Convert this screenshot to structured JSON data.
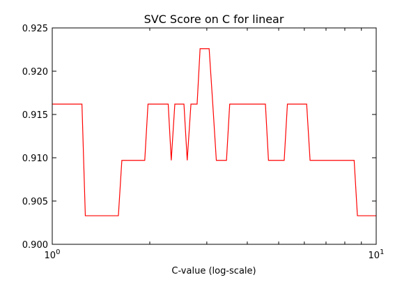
{
  "chart_data": {
    "type": "line",
    "title": "SVC Score on C for linear",
    "xlabel": "C-value (log-scale)",
    "ylabel": "",
    "xscale": "log",
    "xlim": [
      1,
      10
    ],
    "ylim": [
      0.9,
      0.925
    ],
    "grid": false,
    "legend": "none",
    "x_ticks": [
      {
        "value": 1,
        "base": "10",
        "exp": "0"
      },
      {
        "value": 10,
        "base": "10",
        "exp": "1"
      }
    ],
    "y_ticks": [
      {
        "value": 0.9,
        "label": "0.900"
      },
      {
        "value": 0.905,
        "label": "0.905"
      },
      {
        "value": 0.91,
        "label": "0.910"
      },
      {
        "value": 0.915,
        "label": "0.915"
      },
      {
        "value": 0.92,
        "label": "0.920"
      },
      {
        "value": 0.925,
        "label": "0.925"
      }
    ],
    "series": [
      {
        "color": "#ff0000",
        "x": [
          1.0,
          1.235,
          1.265,
          1.6,
          1.64,
          1.93,
          1.975,
          2.28,
          2.33,
          2.39,
          2.55,
          2.61,
          2.68,
          2.8,
          2.86,
          3.05,
          3.13,
          3.21,
          3.45,
          3.53,
          4.55,
          4.65,
          5.2,
          5.32,
          6.1,
          6.25,
          8.55,
          8.75,
          10.0
        ],
        "y": [
          0.9162,
          0.9162,
          0.9033,
          0.9033,
          0.9097,
          0.9097,
          0.9162,
          0.9162,
          0.9097,
          0.9162,
          0.9162,
          0.9097,
          0.9162,
          0.9162,
          0.9226,
          0.9226,
          0.9162,
          0.9097,
          0.9097,
          0.9162,
          0.9162,
          0.9097,
          0.9097,
          0.9162,
          0.9162,
          0.9097,
          0.9097,
          0.9033,
          0.9033
        ]
      }
    ]
  }
}
